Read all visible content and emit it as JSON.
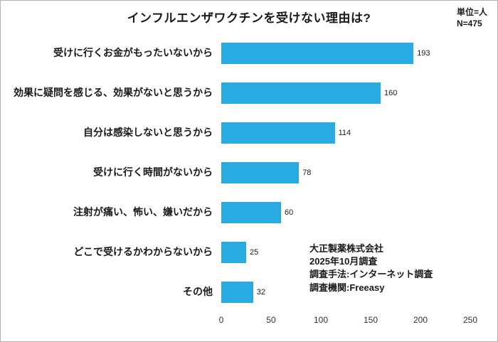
{
  "title": "インフルエンザワクチンを受けない理由は?",
  "unit_note": "単位=人",
  "sample_size": "N=475",
  "source": {
    "line1": "大正製薬株式会社",
    "line2": "2025年10月調査",
    "line3": "調査手法:インターネット調査",
    "line4": "調査機関:Freeasy"
  },
  "chart_data": {
    "type": "bar",
    "orientation": "horizontal",
    "title": "インフルエンザワクチンを受けない理由は?",
    "categories": [
      "受けに行くお金がもったいないから",
      "効果に疑問を感じる、効果がないと思うから",
      "自分は感染しないと思うから",
      "受けに行く時間がないから",
      "注射が痛い、怖い、嫌いだから",
      "どこで受けるかわからないから",
      "その他"
    ],
    "values": [
      193,
      160,
      114,
      78,
      60,
      25,
      32
    ],
    "xlabel": "",
    "ylabel": "",
    "xlim": [
      0,
      250
    ],
    "xticks": [
      0,
      50,
      100,
      150,
      200,
      250
    ],
    "bar_color": "#29abe2",
    "grid": false,
    "legend": false,
    "unit": "人",
    "n": 475
  }
}
